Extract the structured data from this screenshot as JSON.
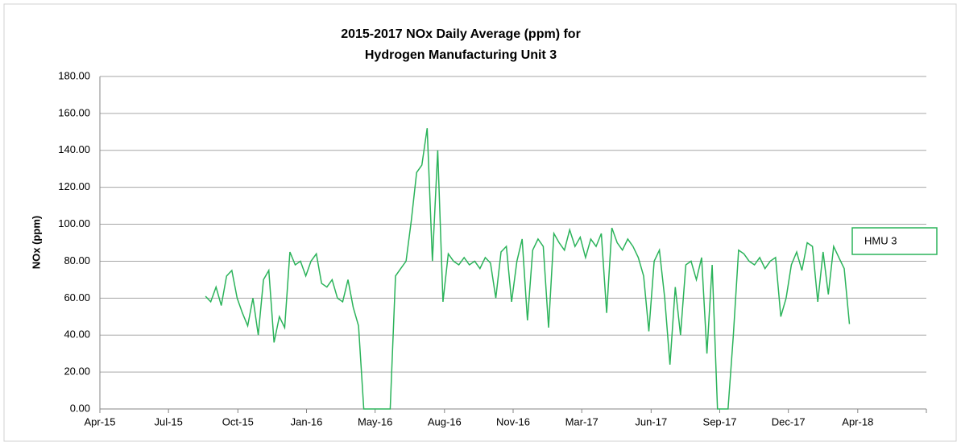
{
  "chart_data": {
    "type": "line",
    "title": [
      "2015-2017 NOx Daily Average (ppm) for",
      "Hydrogen Manufacturing Unit 3"
    ],
    "y_label": "NOx (ppm)",
    "x": [
      42235,
      42242,
      42249,
      42256,
      42263,
      42270,
      42277,
      42284,
      42291,
      42298,
      42305,
      42312,
      42319,
      42326,
      42333,
      42340,
      42347,
      42354,
      42361,
      42368,
      42375,
      42382,
      42389,
      42396,
      42403,
      42410,
      42417,
      42424,
      42431,
      42438,
      42445,
      42452,
      42459,
      42466,
      42473,
      42480,
      42487,
      42494,
      42501,
      42508,
      42515,
      42522,
      42529,
      42536,
      42543,
      42550,
      42557,
      42564,
      42571,
      42578,
      42585,
      42592,
      42599,
      42606,
      42613,
      42620,
      42627,
      42634,
      42641,
      42648,
      42655,
      42662,
      42669,
      42676,
      42683,
      42690,
      42697,
      42704,
      42711,
      42718,
      42725,
      42732,
      42739,
      42746,
      42753,
      42760,
      42767,
      42774,
      42781,
      42788,
      42795,
      42802,
      42809,
      42816,
      42823,
      42830,
      42837,
      42844,
      42851,
      42858,
      42865,
      42872,
      42879,
      42886,
      42893,
      42900,
      42907,
      42914,
      42921,
      42928,
      42935,
      42942,
      42949,
      42956,
      42963,
      42970,
      42977,
      42984,
      42991,
      42998,
      43005,
      43012,
      43019,
      43026,
      43033,
      43040,
      43047,
      43054,
      43061,
      43068,
      43075,
      43082,
      43089
    ],
    "series": [
      {
        "name": "HMU 3",
        "color": "#2bb35a",
        "values": [
          61,
          58,
          66,
          56,
          72,
          75,
          60,
          52,
          45,
          60,
          40,
          70,
          75,
          36,
          50,
          44,
          85,
          78,
          80,
          72,
          80,
          84,
          68,
          66,
          70,
          60,
          58,
          70,
          55,
          45,
          0,
          0,
          0,
          0,
          0,
          0,
          72,
          76,
          80,
          102,
          128,
          132,
          152,
          80,
          140,
          58,
          84,
          80,
          78,
          82,
          78,
          80,
          76,
          82,
          79,
          60,
          85,
          88,
          58,
          80,
          92,
          48,
          86,
          92,
          88,
          44,
          95,
          90,
          86,
          97,
          88,
          93,
          82,
          92,
          88,
          95,
          52,
          98,
          90,
          86,
          92,
          88,
          82,
          72,
          42,
          80,
          86,
          60,
          24,
          66,
          40,
          78,
          80,
          70,
          82,
          30,
          78,
          0,
          0,
          0,
          40,
          86,
          84,
          80,
          78,
          82,
          76,
          80,
          82,
          50,
          60,
          78,
          85,
          75,
          90,
          88,
          58,
          85,
          62,
          88,
          82,
          76,
          46
        ]
      }
    ],
    "xlim": [
      42095,
      43191
    ],
    "xticks": [
      {
        "value": 42095,
        "label": "Apr-15"
      },
      {
        "value": 42186,
        "label": "Jul-15"
      },
      {
        "value": 42278,
        "label": "Oct-15"
      },
      {
        "value": 42369,
        "label": "Jan-16"
      },
      {
        "value": 42460,
        "label": "May-16"
      },
      {
        "value": 42552,
        "label": "Aug-16"
      },
      {
        "value": 42643,
        "label": "Nov-16"
      },
      {
        "value": 42734,
        "label": "Mar-17"
      },
      {
        "value": 42826,
        "label": "Jun-17"
      },
      {
        "value": 42917,
        "label": "Sep-17"
      },
      {
        "value": 43008,
        "label": "Dec-17"
      },
      {
        "value": 43100,
        "label": "Apr-18"
      },
      {
        "value": 43191,
        "label": "Apr-18"
      }
    ],
    "ylim": [
      0,
      180
    ],
    "yticks": [
      {
        "value": 0,
        "label": "0.00"
      },
      {
        "value": 20,
        "label": "20.00"
      },
      {
        "value": 40,
        "label": "40.00"
      },
      {
        "value": 60,
        "label": "60.00"
      },
      {
        "value": 80,
        "label": "80.00"
      },
      {
        "value": 100,
        "label": "100.00"
      },
      {
        "value": 120,
        "label": "120.00"
      },
      {
        "value": 140,
        "label": "140.00"
      },
      {
        "value": 160,
        "label": "160.00"
      },
      {
        "value": 180,
        "label": "180.00"
      }
    ],
    "grid": true,
    "legend": "right"
  }
}
